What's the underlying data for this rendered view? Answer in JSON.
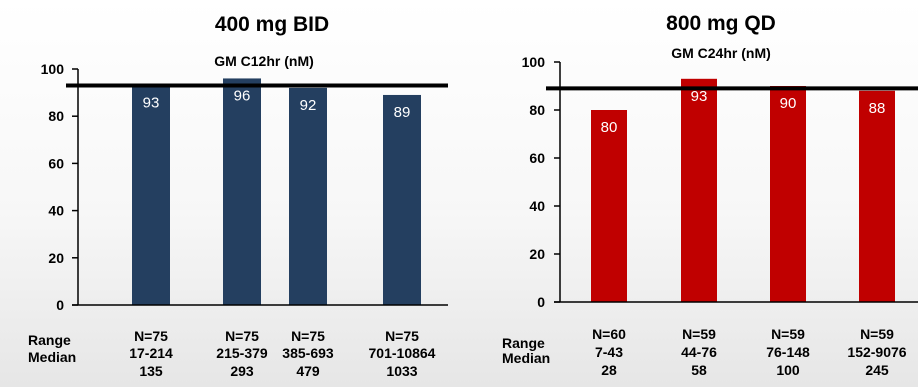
{
  "chart_data": [
    {
      "type": "bar",
      "title": "400 mg BID",
      "subtitle": "GM C12hr (nM)",
      "color": "#243f60",
      "ylim": [
        0,
        100
      ],
      "yticks": [
        "0",
        "20",
        "40",
        "60",
        "80",
        "100"
      ],
      "values": [
        93,
        96,
        92,
        89
      ],
      "value_labels": [
        "93",
        "96",
        "92",
        "89"
      ],
      "reference_line": 93,
      "row_labels": [
        "Range",
        "Median"
      ],
      "categories": [
        {
          "n": "N=75",
          "range": "17-214",
          "median": "135"
        },
        {
          "n": "N=75",
          "range": "215-379",
          "median": "293"
        },
        {
          "n": "N=75",
          "range": "385-693",
          "median": "479"
        },
        {
          "n": "N=75",
          "range": "701-10864",
          "median": "1033"
        }
      ]
    },
    {
      "type": "bar",
      "title": "800 mg QD",
      "subtitle": "GM C24hr (nM)",
      "color": "#c00000",
      "ylim": [
        0,
        100
      ],
      "yticks": [
        "0",
        "20",
        "40",
        "60",
        "80",
        "100"
      ],
      "values": [
        80,
        93,
        90,
        88
      ],
      "value_labels": [
        "80",
        "93",
        "90",
        "88"
      ],
      "reference_line": 89,
      "row_labels": [
        "Range",
        "Median"
      ],
      "categories": [
        {
          "n": "N=60",
          "range": "7-43",
          "median": "28"
        },
        {
          "n": "N=59",
          "range": "44-76",
          "median": "58"
        },
        {
          "n": "N=59",
          "range": "76-148",
          "median": "100"
        },
        {
          "n": "N=59",
          "range": "152-9076",
          "median": "245"
        }
      ]
    }
  ]
}
